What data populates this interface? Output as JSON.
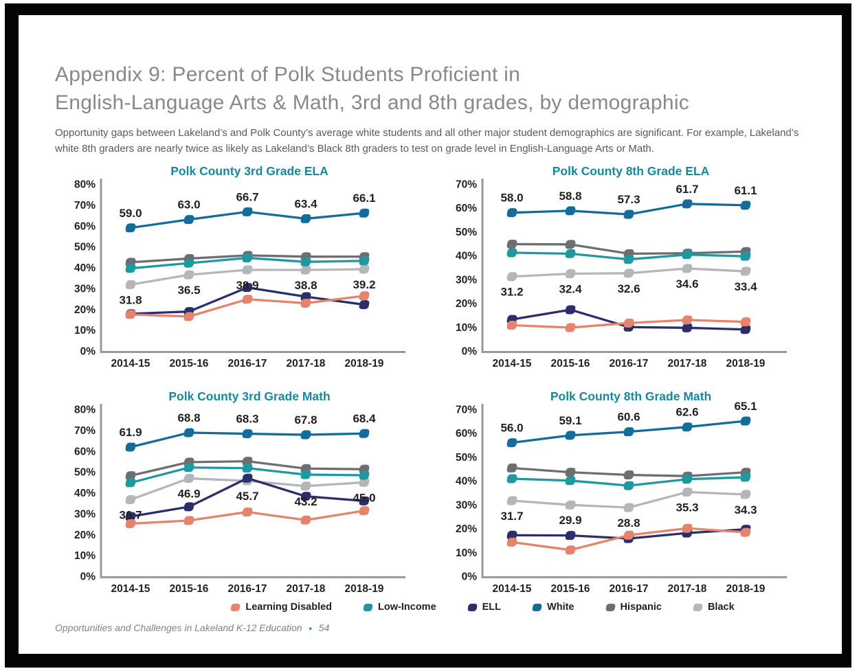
{
  "page": {
    "title_lines": [
      "Appendix 9: Percent of Polk Students Proficient in",
      "English-Language Arts & Math, 3rd and 8th grades, by demographic"
    ],
    "description_lines": [
      "Opportunity gaps between Lakeland’s and Polk County’s average white students and all other major student demographics are significant. For example, Lakeland’s",
      "white 8th graders are nearly twice as likely as Lakeland’s Black 8th graders to test on grade level in English-Language Arts or Math."
    ],
    "footer": {
      "text": "Opportunities and Challenges in Lakeland K-12 Education",
      "separator": "•",
      "page_number": "54"
    }
  },
  "colors": {
    "chart_title": "#17879B",
    "axis": "#97999C",
    "tick_text": "#231F20",
    "data_label": "#231F20",
    "series": {
      "Learning Disabled": "#E5836C",
      "Low-Income": "#1E99A0",
      "ELL": "#2B2E6B",
      "White": "#136C99",
      "Hispanic": "#6D6E71",
      "Black": "#B4B6B8"
    }
  },
  "legend": [
    {
      "label": "Learning Disabled",
      "color": "#E5836C"
    },
    {
      "label": "Low-Income",
      "color": "#1E99A0"
    },
    {
      "label": "ELL",
      "color": "#2B2E6B"
    },
    {
      "label": "White",
      "color": "#136C99"
    },
    {
      "label": "Hispanic",
      "color": "#6D6E71"
    },
    {
      "label": "Black",
      "color": "#B4B6B8"
    }
  ],
  "chart_data": [
    {
      "type": "line",
      "title": "Polk County 3rd Grade ELA",
      "categories": [
        "2014-15",
        "2015-16",
        "2016-17",
        "2017-18",
        "2018-19"
      ],
      "ylim": [
        0,
        80
      ],
      "ytick_step": 10,
      "grid": false,
      "series": [
        {
          "name": "Learning Disabled",
          "values": [
            17.5,
            16.5,
            24.8,
            22.9,
            26.4
          ],
          "labeled": false
        },
        {
          "name": "Low-Income",
          "values": [
            39.6,
            42.1,
            44.6,
            42.7,
            43.2
          ],
          "labeled": false
        },
        {
          "name": "ELL",
          "values": [
            17.8,
            18.9,
            30.4,
            26.0,
            22.2
          ],
          "labeled": false
        },
        {
          "name": "White",
          "values": [
            59.0,
            63.0,
            66.7,
            63.4,
            66.1
          ],
          "labeled": true,
          "label_position": "above"
        },
        {
          "name": "Hispanic",
          "values": [
            42.5,
            44.3,
            45.8,
            45.2,
            45.2
          ],
          "labeled": false
        },
        {
          "name": "Black",
          "values": [
            31.8,
            36.5,
            38.9,
            38.8,
            39.2
          ],
          "labeled": true,
          "label_position": "below"
        }
      ]
    },
    {
      "type": "line",
      "title": "Polk County 8th Grade ELA",
      "categories": [
        "2014-15",
        "2015-16",
        "2016-17",
        "2017-18",
        "2018-19"
      ],
      "ylim": [
        0,
        70
      ],
      "ytick_step": 10,
      "grid": false,
      "series": [
        {
          "name": "Learning Disabled",
          "values": [
            10.8,
            9.8,
            11.7,
            13.0,
            12.2
          ],
          "labeled": false
        },
        {
          "name": "Low-Income",
          "values": [
            41.2,
            40.8,
            38.4,
            40.4,
            39.7
          ],
          "labeled": false
        },
        {
          "name": "ELL",
          "values": [
            13.2,
            17.3,
            10.0,
            9.7,
            9.0
          ],
          "labeled": false
        },
        {
          "name": "White",
          "values": [
            58.0,
            58.8,
            57.3,
            61.7,
            61.1
          ],
          "labeled": true,
          "label_position": "above"
        },
        {
          "name": "Hispanic",
          "values": [
            44.8,
            44.7,
            40.8,
            41.0,
            41.7
          ],
          "labeled": false
        },
        {
          "name": "Black",
          "values": [
            31.2,
            32.4,
            32.6,
            34.6,
            33.4
          ],
          "labeled": true,
          "label_position": "below"
        }
      ]
    },
    {
      "type": "line",
      "title": "Polk County 3rd Grade Math",
      "categories": [
        "2014-15",
        "2015-16",
        "2016-17",
        "2017-18",
        "2018-19"
      ],
      "ylim": [
        0,
        80
      ],
      "ytick_step": 10,
      "grid": false,
      "series": [
        {
          "name": "Learning Disabled",
          "values": [
            25.2,
            26.7,
            30.8,
            26.9,
            31.4
          ],
          "labeled": false
        },
        {
          "name": "Low-Income",
          "values": [
            44.8,
            52.1,
            51.8,
            48.7,
            48.4
          ],
          "labeled": false
        },
        {
          "name": "ELL",
          "values": [
            28.6,
            33.3,
            47.0,
            38.3,
            36.1
          ],
          "labeled": false
        },
        {
          "name": "White",
          "values": [
            61.9,
            68.8,
            68.3,
            67.8,
            68.4
          ],
          "labeled": true,
          "label_position": "above"
        },
        {
          "name": "Hispanic",
          "values": [
            48.2,
            54.7,
            55.1,
            51.6,
            51.3
          ],
          "labeled": false
        },
        {
          "name": "Black",
          "values": [
            36.7,
            46.9,
            45.7,
            43.2,
            45.0
          ],
          "labeled": true,
          "label_position": "below"
        }
      ]
    },
    {
      "type": "line",
      "title": "Polk County 8th Grade Math",
      "categories": [
        "2014-15",
        "2015-16",
        "2016-17",
        "2017-18",
        "2018-19"
      ],
      "ylim": [
        0,
        70
      ],
      "ytick_step": 10,
      "grid": false,
      "series": [
        {
          "name": "Learning Disabled",
          "values": [
            14.3,
            11.0,
            17.2,
            20.1,
            18.4
          ],
          "labeled": false
        },
        {
          "name": "Low-Income",
          "values": [
            40.9,
            40.1,
            38.0,
            40.7,
            41.5
          ],
          "labeled": false
        },
        {
          "name": "ELL",
          "values": [
            17.2,
            17.1,
            15.8,
            18.1,
            19.7
          ],
          "labeled": false
        },
        {
          "name": "White",
          "values": [
            56.0,
            59.1,
            60.6,
            62.6,
            65.1
          ],
          "labeled": true,
          "label_position": "above"
        },
        {
          "name": "Hispanic",
          "values": [
            45.4,
            43.6,
            42.5,
            42.0,
            43.6
          ],
          "labeled": false
        },
        {
          "name": "Black",
          "values": [
            31.7,
            29.9,
            28.8,
            35.3,
            34.3
          ],
          "labeled": true,
          "label_position": "below"
        }
      ]
    }
  ]
}
